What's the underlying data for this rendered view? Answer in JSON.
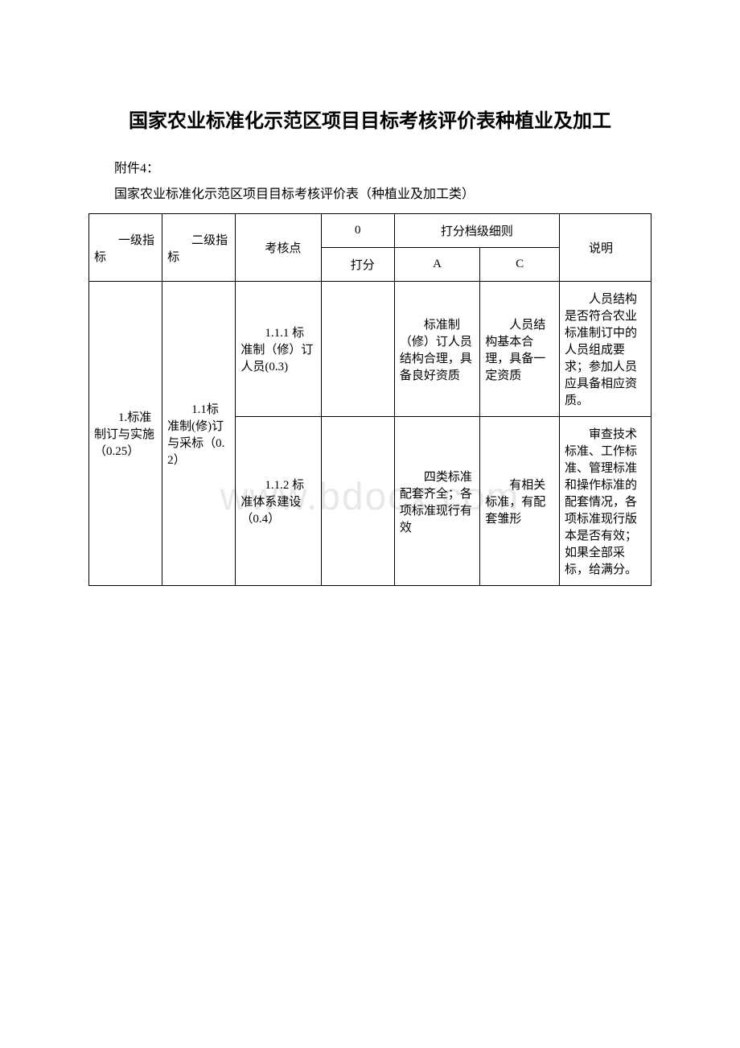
{
  "title": "国家农业标准化示范区项目目标考核评价表种植业及加工",
  "attachment_label": "附件4：",
  "subtitle": "国家农业标准化示范区项目目标考核评价表（种植业及加工类）",
  "watermark": "www.bdocx.com",
  "table": {
    "headers": {
      "level1": "一级指标",
      "level2": "二级指标",
      "checkpoint": "考核点",
      "zero": "0",
      "scoring_detail": "打分档级细则",
      "score": "打分",
      "col_a": "A",
      "col_c": "C",
      "description": "说明"
    },
    "rows": [
      {
        "level1": "1.标准制订与实施（0.25）",
        "level2": "1.1标准制(修)订与采标（0.2）",
        "checkpoint": "1.1.1 标准制（修）订人员(0.3)",
        "score": "",
        "col_a": "标准制（修）订人员结构合理，具备良好资质",
        "col_c": "人员结构基本合理，具备一定资质",
        "description": "人员结构是否符合农业标准制订中的人员组成要求；参加人员应具备相应资质。"
      },
      {
        "checkpoint": "1.1.2 标准体系建设（0.4）",
        "score": "",
        "col_a": "四类标准配套齐全；各项标准现行有效",
        "col_c": "有相关标准，有配套雏形",
        "description": "审查技术标准、工作标准、管理标准和操作标准的配套情况，各项标准现行版本是否有效；如果全部采标，给满分。"
      }
    ]
  }
}
